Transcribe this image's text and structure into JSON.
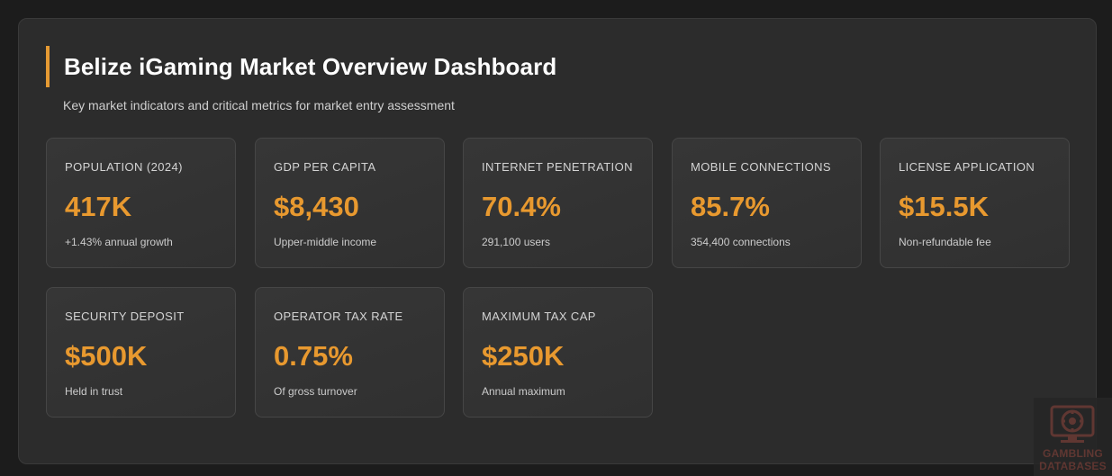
{
  "header": {
    "title": "Belize iGaming Market Overview Dashboard",
    "subtitle": "Key market indicators and critical metrics for market entry assessment"
  },
  "colors": {
    "accent": "#e8992f",
    "panel": "#2c2c2c",
    "background": "#1c1c1c"
  },
  "cards": [
    {
      "label": "POPULATION (2024)",
      "value": "417K",
      "note": "+1.43% annual growth"
    },
    {
      "label": "GDP PER CAPITA",
      "value": "$8,430",
      "note": "Upper-middle income"
    },
    {
      "label": "INTERNET PENETRATION",
      "value": "70.4%",
      "note": "291,100 users"
    },
    {
      "label": "MOBILE CONNECTIONS",
      "value": "85.7%",
      "note": "354,400 connections"
    },
    {
      "label": "LICENSE APPLICATION",
      "value": "$15.5K",
      "note": "Non-refundable fee"
    },
    {
      "label": "SECURITY DEPOSIT",
      "value": "$500K",
      "note": "Held in trust"
    },
    {
      "label": "OPERATOR TAX RATE",
      "value": "0.75%",
      "note": "Of gross turnover"
    },
    {
      "label": "MAXIMUM TAX CAP",
      "value": "$250K",
      "note": "Annual maximum"
    }
  ],
  "watermark": {
    "line1": "GAMBLING",
    "line2": "DATABASES",
    "icon": "monitor-chip-logo-icon"
  }
}
